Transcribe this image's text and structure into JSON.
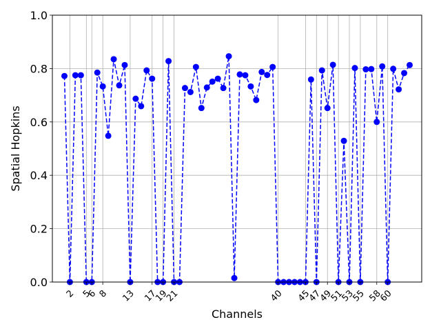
{
  "chart_data": {
    "type": "line",
    "title": "",
    "xlabel": "Channels",
    "ylabel": "Spatial Hopkins",
    "ylim": [
      0.0,
      1.0
    ],
    "xlim": [
      -1.2,
      66.2
    ],
    "yticks": [
      "0.0",
      "0.2",
      "0.4",
      "0.6",
      "0.8",
      "1.0"
    ],
    "xtick_labels": [
      "2",
      "5",
      "6",
      "8",
      "13",
      "17",
      "19",
      "21",
      "40",
      "45",
      "47",
      "49",
      "51",
      "53",
      "55",
      "58",
      "60"
    ],
    "grid": true,
    "style": {
      "color": "#0000ff",
      "line": "dashed",
      "marker": "circle"
    },
    "x": [
      1,
      2,
      3,
      4,
      5,
      6,
      7,
      8,
      9,
      10,
      11,
      12,
      13,
      14,
      15,
      16,
      17,
      18,
      19,
      20,
      21,
      22,
      23,
      24,
      25,
      26,
      27,
      28,
      29,
      30,
      31,
      32,
      33,
      34,
      35,
      36,
      37,
      38,
      39,
      40,
      41,
      42,
      43,
      44,
      45,
      46,
      47,
      48,
      49,
      50,
      51,
      52,
      53,
      54,
      55,
      56,
      57,
      58,
      59,
      60,
      61,
      62,
      63,
      64
    ],
    "y": [
      0.772,
      0.0,
      0.775,
      0.775,
      0.0,
      0.0,
      0.785,
      0.733,
      0.548,
      0.835,
      0.737,
      0.813,
      0.0,
      0.687,
      0.659,
      0.793,
      0.762,
      0.0,
      0.0,
      0.828,
      0.0,
      0.0,
      0.727,
      0.712,
      0.806,
      0.652,
      0.729,
      0.751,
      0.762,
      0.727,
      0.846,
      0.015,
      0.778,
      0.775,
      0.733,
      0.682,
      0.787,
      0.776,
      0.806,
      0.0,
      0.0,
      0.0,
      0.0,
      0.0,
      0.0,
      0.759,
      0.0,
      0.793,
      0.652,
      0.814,
      0.0,
      0.529,
      0.0,
      0.802,
      0.0,
      0.797,
      0.798,
      0.6,
      0.808,
      0.0,
      0.799,
      0.722,
      0.783,
      0.813
    ]
  }
}
